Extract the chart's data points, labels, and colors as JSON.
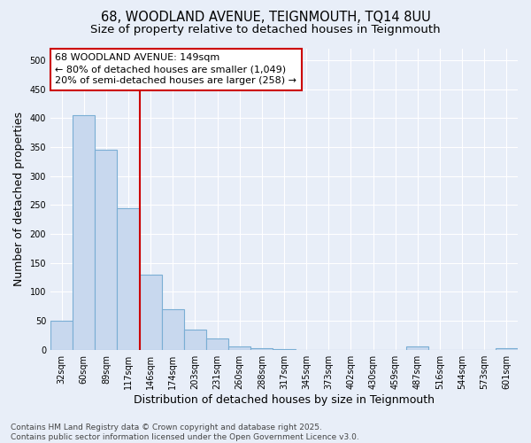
{
  "title_line1": "68, WOODLAND AVENUE, TEIGNMOUTH, TQ14 8UU",
  "title_line2": "Size of property relative to detached houses in Teignmouth",
  "xlabel": "Distribution of detached houses by size in Teignmouth",
  "ylabel": "Number of detached properties",
  "categories": [
    "32sqm",
    "60sqm",
    "89sqm",
    "117sqm",
    "146sqm",
    "174sqm",
    "203sqm",
    "231sqm",
    "260sqm",
    "288sqm",
    "317sqm",
    "345sqm",
    "373sqm",
    "402sqm",
    "430sqm",
    "459sqm",
    "487sqm",
    "516sqm",
    "544sqm",
    "573sqm",
    "601sqm"
  ],
  "values": [
    50,
    405,
    345,
    245,
    130,
    70,
    35,
    20,
    5,
    2,
    1,
    0,
    0,
    0,
    0,
    0,
    5,
    0,
    0,
    0,
    2
  ],
  "bar_color": "#c8d8ee",
  "bar_edge_color": "#7aaed4",
  "reference_line_index": 4,
  "reference_line_color": "#cc0000",
  "annotation_line1": "68 WOODLAND AVENUE: 149sqm",
  "annotation_line2": "← 80% of detached houses are smaller (1,049)",
  "annotation_line3": "20% of semi-detached houses are larger (258) →",
  "annotation_box_facecolor": "#ffffff",
  "annotation_box_edgecolor": "#cc0000",
  "ylim": [
    0,
    520
  ],
  "yticks": [
    0,
    50,
    100,
    150,
    200,
    250,
    300,
    350,
    400,
    450,
    500
  ],
  "background_color": "#e8eef8",
  "grid_color": "#ffffff",
  "footer_text": "Contains HM Land Registry data © Crown copyright and database right 2025.\nContains public sector information licensed under the Open Government Licence v3.0.",
  "title_fontsize": 10.5,
  "subtitle_fontsize": 9.5,
  "axis_label_fontsize": 9,
  "tick_fontsize": 7,
  "footer_fontsize": 6.5,
  "annotation_fontsize": 8
}
